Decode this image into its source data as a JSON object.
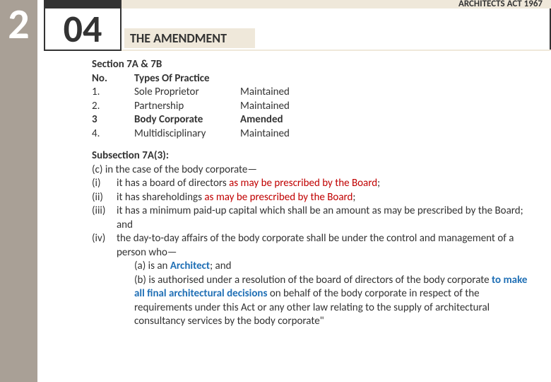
{
  "left_number": "2",
  "box_number": "04",
  "header_right": "ARCHITECTS ACT 1967",
  "amendment_title": "THE AMENDMENT",
  "section_head": "Section 7A & 7B",
  "table": {
    "h1": "No.",
    "h2": "Types Of Practice",
    "h3_blank": "",
    "rows": [
      {
        "no": "1.",
        "type": "Sole Proprietor",
        "status": "Maintained",
        "bold": false
      },
      {
        "no": "2.",
        "type": "Partnership",
        "status": "Maintained",
        "bold": false
      },
      {
        "no": "3",
        "type": "Body Corporate",
        "status": "Amended",
        "bold": true
      },
      {
        "no": "4.",
        "type": "Multidisciplinary",
        "status": "Maintained",
        "bold": false
      }
    ]
  },
  "subsection_head": "Subsection 7A(3):",
  "clause_c": "(c) in the case of the body corporate—",
  "items": {
    "i": {
      "lbl": "(i)",
      "pre": "it has a board of directors ",
      "red": "as may be prescribed by the Board",
      "post": ";"
    },
    "ii": {
      "lbl": "(ii)",
      "pre": "it has shareholdings ",
      "red": "as may be prescribed by the Board",
      "post": ";"
    },
    "iii": {
      "lbl": "(iii)",
      "txt": "it has a minimum paid-up capital which shall be an amount as may be prescribed by the Board; and"
    },
    "iv": {
      "lbl": "(iv)",
      "lead": "the day-to-day affairs of the body corporate shall be under the control and management of a person who—",
      "a_pre": "(a) is an ",
      "a_blue": "Architect",
      "a_post": "; and",
      "b_pre": "(b) is authorised under a resolution of the board of directors of the body corporate ",
      "b_blue": "to make all final architectural decisions",
      "b_post": " on behalf of the body corporate in respect of the requirements under this Act or any other law relating to the supply of architectural consultancy services by the body corporate\""
    }
  }
}
